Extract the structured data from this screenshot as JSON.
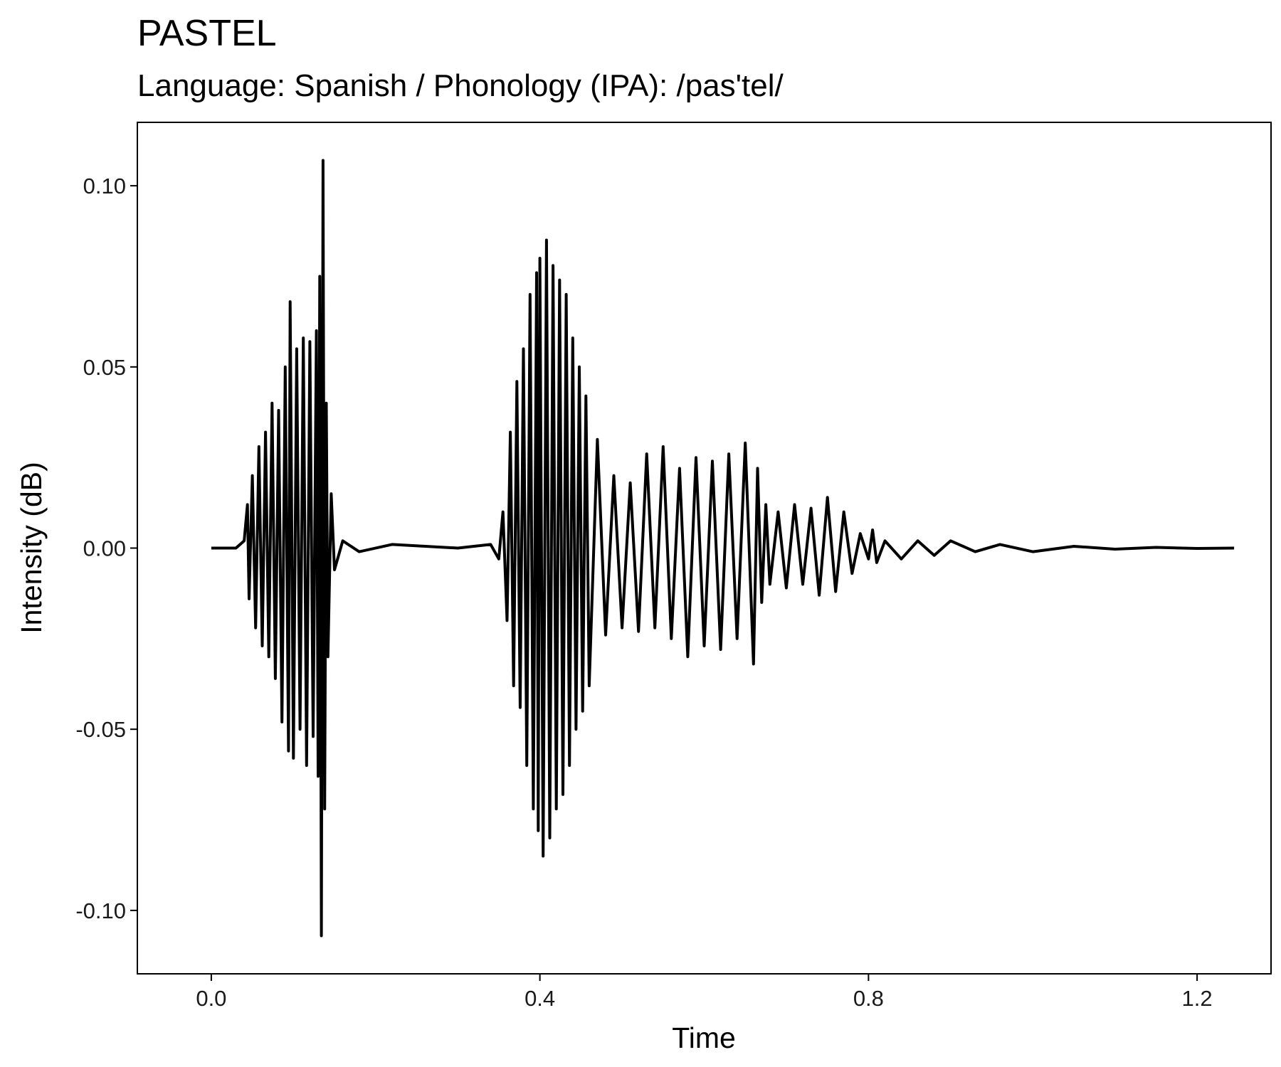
{
  "chart_data": {
    "type": "line",
    "title": "PASTEL",
    "subtitle": "Language: Spanish / Phonology (IPA): /pas'tel/",
    "xlabel": "Time",
    "ylabel": "Intensity (dB)",
    "xlim": [
      -0.09,
      1.29
    ],
    "ylim": [
      -0.1175,
      0.1175
    ],
    "x_ticks": [
      0.0,
      0.4,
      0.8,
      1.2
    ],
    "x_tick_labels": [
      "0.0",
      "0.4",
      "0.8",
      "1.2"
    ],
    "y_ticks": [
      -0.1,
      -0.05,
      0.0,
      0.05,
      0.1
    ],
    "y_tick_labels": [
      "-0.10",
      "-0.05",
      "0.00",
      "0.05",
      "0.10"
    ],
    "grid": false,
    "panel_border": true,
    "series": [
      {
        "color": "#000000",
        "x": [
          0.0,
          0.03,
          0.04,
          0.044,
          0.046,
          0.05,
          0.054,
          0.058,
          0.062,
          0.066,
          0.07,
          0.074,
          0.078,
          0.082,
          0.086,
          0.09,
          0.094,
          0.096,
          0.1,
          0.104,
          0.108,
          0.112,
          0.116,
          0.12,
          0.124,
          0.128,
          0.13,
          0.132,
          0.134,
          0.136,
          0.138,
          0.14,
          0.142,
          0.146,
          0.15,
          0.16,
          0.18,
          0.22,
          0.3,
          0.34,
          0.35,
          0.355,
          0.36,
          0.364,
          0.368,
          0.372,
          0.376,
          0.38,
          0.384,
          0.388,
          0.392,
          0.396,
          0.398,
          0.4,
          0.404,
          0.408,
          0.412,
          0.416,
          0.42,
          0.424,
          0.428,
          0.432,
          0.436,
          0.44,
          0.444,
          0.448,
          0.452,
          0.456,
          0.46,
          0.47,
          0.48,
          0.49,
          0.5,
          0.51,
          0.52,
          0.53,
          0.54,
          0.55,
          0.56,
          0.57,
          0.58,
          0.59,
          0.6,
          0.61,
          0.62,
          0.63,
          0.64,
          0.65,
          0.66,
          0.665,
          0.67,
          0.675,
          0.68,
          0.69,
          0.7,
          0.71,
          0.72,
          0.73,
          0.74,
          0.75,
          0.76,
          0.77,
          0.78,
          0.79,
          0.8,
          0.805,
          0.81,
          0.82,
          0.84,
          0.86,
          0.88,
          0.9,
          0.93,
          0.96,
          1.0,
          1.05,
          1.1,
          1.15,
          1.2,
          1.245
        ],
        "y": [
          0.0,
          0.0,
          0.002,
          0.012,
          -0.014,
          0.02,
          -0.022,
          0.028,
          -0.027,
          0.032,
          -0.03,
          0.04,
          -0.036,
          0.038,
          -0.048,
          0.05,
          -0.056,
          0.068,
          -0.058,
          0.055,
          -0.05,
          0.058,
          -0.06,
          0.057,
          -0.052,
          0.06,
          -0.063,
          0.075,
          -0.107,
          0.107,
          -0.072,
          0.04,
          -0.03,
          0.015,
          -0.006,
          0.002,
          -0.001,
          0.001,
          0.0,
          0.001,
          -0.003,
          0.01,
          -0.02,
          0.032,
          -0.038,
          0.046,
          -0.044,
          0.055,
          -0.06,
          0.07,
          -0.072,
          0.076,
          -0.078,
          0.08,
          -0.085,
          0.085,
          -0.08,
          0.078,
          -0.072,
          0.074,
          -0.068,
          0.07,
          -0.06,
          0.058,
          -0.05,
          0.05,
          -0.045,
          0.042,
          -0.038,
          0.03,
          -0.024,
          0.02,
          -0.022,
          0.018,
          -0.023,
          0.026,
          -0.022,
          0.028,
          -0.025,
          0.022,
          -0.03,
          0.025,
          -0.027,
          0.024,
          -0.028,
          0.026,
          -0.025,
          0.029,
          -0.032,
          0.022,
          -0.015,
          0.012,
          -0.01,
          0.01,
          -0.011,
          0.012,
          -0.01,
          0.011,
          -0.013,
          0.014,
          -0.012,
          0.01,
          -0.007,
          0.004,
          -0.003,
          0.005,
          -0.004,
          0.002,
          -0.003,
          0.002,
          -0.002,
          0.002,
          -0.001,
          0.001,
          -0.001,
          0.0005,
          -0.0003,
          0.0002,
          -0.0001,
          0.0
        ]
      }
    ]
  }
}
